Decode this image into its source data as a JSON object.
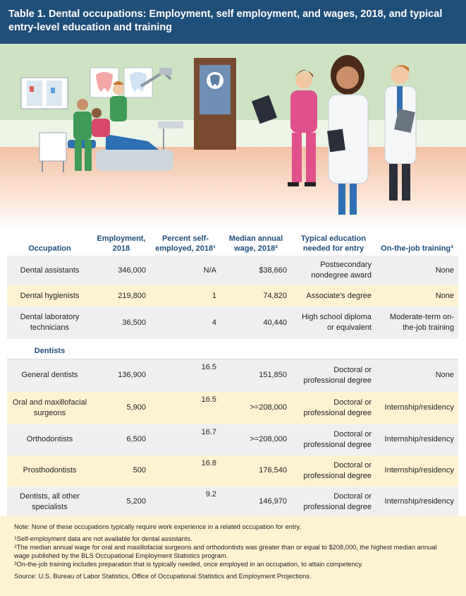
{
  "header": {
    "title": "Table 1. Dental occupations: Employment, self employment, and wages, 2018, and typical entry-level education and training"
  },
  "colors": {
    "header_bg": "#1f4e79",
    "accent_text": "#1f4e79",
    "row_grey": "#efefef",
    "row_yellow": "#fdf3d1",
    "wall_green": "#cde3c2",
    "floor_peach": "#f6c9ad"
  },
  "table": {
    "headers": [
      "Occupation",
      "Employment, 2018",
      "Percent self-employed, 2018¹",
      "Median annual wage, 2018²",
      "Typical education needed for entry",
      "On-the-job training³"
    ],
    "rows_top": [
      {
        "occupation": "Dental assistants",
        "employment": "346,000",
        "self_employed": "N/A",
        "wage": "$38,660",
        "education": "Postsecondary nondegree award",
        "training": "None"
      },
      {
        "occupation": "Dental hygienists",
        "employment": "219,800",
        "self_employed": "1",
        "wage": "74,820",
        "education": "Associate's degree",
        "training": "None"
      },
      {
        "occupation": "Dental laboratory technicians",
        "employment": "36,500",
        "self_employed": "4",
        "wage": "40,440",
        "education": "High school diploma or equivalent",
        "training": "Moderate-term on-the-job training"
      }
    ],
    "section_label": "Dentists",
    "rows_dentists": [
      {
        "occupation": "General dentists",
        "employment": "136,900",
        "self_employed": "16.5",
        "wage": "151,850",
        "education": "Doctoral or professional degree",
        "training": "None"
      },
      {
        "occupation": "Oral and maxillofacial surgeons",
        "employment": "5,900",
        "self_employed": "16.5",
        "wage": ">=208,000",
        "education": "Doctoral or professional degree",
        "training": "Internship/residency"
      },
      {
        "occupation": "Orthodontists",
        "employment": "6,500",
        "self_employed": "16.7",
        "wage": ">=208,000",
        "education": "Doctoral or professional degree",
        "training": "Internship/residency"
      },
      {
        "occupation": "Prosthodontists",
        "employment": "500",
        "self_employed": "16.8",
        "wage": "176,540",
        "education": "Doctoral or professional degree",
        "training": "Internship/residency"
      },
      {
        "occupation": "Dentists, all other specialists",
        "employment": "5,200",
        "self_employed": "9.2",
        "wage": "146,970",
        "education": "Doctoral or professional degree",
        "training": "Internship/residency"
      }
    ]
  },
  "footnotes": {
    "note": "Note: None of these occupations typically require work experience in a related occupation for entry.",
    "fn1_marker": "1",
    "fn1": "Self-employment data are not available for dental assistants.",
    "fn2_marker": "2",
    "fn2": "The median annual wage for oral and maxillofacial surgeons and orthodontists was greater than or equal to $208,000, the highest median annual wage published by the BLS Occupational Employment Statistics program.",
    "fn3_marker": "3",
    "fn3": "On-the-job training includes preparation that is typically needed, once employed in an occupation, to attain competency.",
    "source": "Source: U.S. Bureau of Labor Statistics, Office of Occupational Statistics and Employment Projections."
  }
}
